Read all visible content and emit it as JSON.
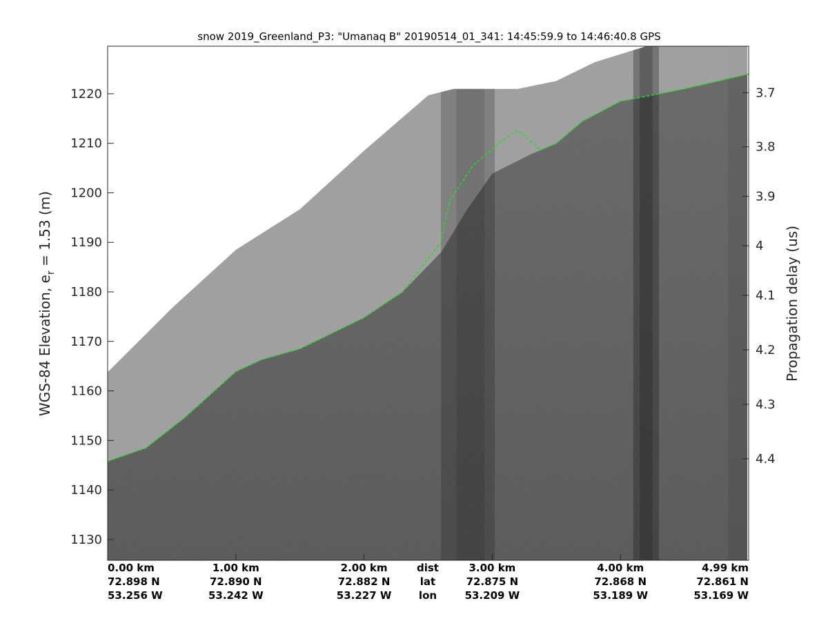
{
  "chart_data": {
    "type": "heatmap",
    "title": "snow 2019_Greenland_P3: \"Umanaq B\"  20190514_01_341: 14:45:59.9 to 14:46:40.8 GPS",
    "ylabel_main": "WGS-84 Elevation, e",
    "ylabel_sub": "r",
    "ylabel_tail": " = 1.53 (m)",
    "y2label": "Propagation delay (us)",
    "ylim": [
      1125.8,
      1229.6
    ],
    "y_ticks": [
      1130,
      1140,
      1150,
      1160,
      1170,
      1180,
      1190,
      1200,
      1210,
      1220
    ],
    "y2_ticks": [
      {
        "label": "3.7",
        "elev": 1220.2
      },
      {
        "label": "3.8",
        "elev": 1209.3
      },
      {
        "label": "3.9",
        "elev": 1199.3
      },
      {
        "label": "4",
        "elev": 1189.3
      },
      {
        "label": "4.1",
        "elev": 1179.3
      },
      {
        "label": "4.2",
        "elev": 1168.3
      },
      {
        "label": "4.3",
        "elev": 1157.3
      },
      {
        "label": "4.4",
        "elev": 1146.3
      }
    ],
    "xlim_km": [
      0,
      5.0
    ],
    "image_end_km": 4.99,
    "x_labels": [
      {
        "km": 0.0,
        "dist": "0.00 km",
        "lat": "72.898 N",
        "lon": "53.256 W",
        "align": "start"
      },
      {
        "km": 1.0,
        "dist": "1.00 km",
        "lat": "72.890 N",
        "lon": "53.242 W",
        "align": "middle"
      },
      {
        "km": 2.0,
        "dist": "2.00 km",
        "lat": "72.882 N",
        "lon": "53.227 W",
        "align": "middle"
      },
      {
        "km": 3.0,
        "dist": "3.00 km",
        "lat": "72.875 N",
        "lon": "53.209 W",
        "align": "middle"
      },
      {
        "km": 4.0,
        "dist": "4.00 km",
        "lat": "72.868 N",
        "lon": "53.189 W",
        "align": "middle"
      },
      {
        "km": 5.0,
        "dist": "4.99 km",
        "lat": "72.861 N",
        "lon": "53.169 W",
        "align": "end"
      }
    ],
    "row_labels": {
      "dist": "dist",
      "lat": "lat",
      "lon": "lon"
    },
    "top_boundary": [
      [
        0.0,
        1163.8
      ],
      [
        0.5,
        1176.7
      ],
      [
        1.0,
        1188.5
      ],
      [
        1.5,
        1196.7
      ],
      [
        2.0,
        1208.5
      ],
      [
        2.5,
        1219.7
      ],
      [
        2.7,
        1221.0
      ],
      [
        3.2,
        1221.0
      ],
      [
        3.5,
        1222.6
      ],
      [
        3.8,
        1226.4
      ],
      [
        4.2,
        1229.6
      ],
      [
        5.0,
        1229.6
      ]
    ],
    "surface_layer": [
      [
        0.0,
        1145.8
      ],
      [
        0.3,
        1148.5
      ],
      [
        0.6,
        1154.6
      ],
      [
        1.0,
        1163.9
      ],
      [
        1.2,
        1166.3
      ],
      [
        1.5,
        1168.5
      ],
      [
        2.0,
        1174.8
      ],
      [
        2.3,
        1180.0
      ],
      [
        2.6,
        1188.0
      ],
      [
        2.8,
        1196.5
      ],
      [
        3.0,
        1203.9
      ],
      [
        3.3,
        1207.8
      ],
      [
        3.5,
        1210.0
      ],
      [
        3.7,
        1214.4
      ],
      [
        4.0,
        1218.5
      ],
      [
        4.5,
        1221.0
      ],
      [
        5.0,
        1224.0
      ],
      [
        5.25,
        1225.7
      ]
    ],
    "layer_tracker": [
      [
        0.0,
        1145.8
      ],
      [
        0.3,
        1148.5
      ],
      [
        0.6,
        1154.6
      ],
      [
        1.0,
        1163.9
      ],
      [
        1.2,
        1166.3
      ],
      [
        1.5,
        1168.5
      ],
      [
        2.0,
        1174.8
      ],
      [
        2.3,
        1180.0
      ],
      [
        2.6,
        1190.0
      ],
      [
        2.62,
        1193.0
      ],
      [
        2.67,
        1198.5
      ],
      [
        2.85,
        1205.5
      ],
      [
        3.1,
        1211.0
      ],
      [
        3.2,
        1212.6
      ],
      [
        3.33,
        1209.8
      ],
      [
        3.37,
        1208.6
      ],
      [
        3.5,
        1210.0
      ],
      [
        3.7,
        1214.4
      ],
      [
        4.0,
        1218.5
      ],
      [
        4.5,
        1221.0
      ],
      [
        5.0,
        1224.0
      ],
      [
        5.25,
        1225.7
      ]
    ],
    "dark_bands": [
      {
        "x0": 2.6,
        "x1": 3.02,
        "alpha": 0.22
      },
      {
        "x0": 2.72,
        "x1": 2.94,
        "alpha": 0.12
      },
      {
        "x0": 4.1,
        "x1": 4.3,
        "alpha": 0.3
      },
      {
        "x0": 4.15,
        "x1": 4.25,
        "alpha": 0.22
      }
    ],
    "colors": {
      "air": "#9e9e9e",
      "firn_top": "#646464",
      "firn_bottom": "#545454",
      "layer_line": "#22dd22",
      "axis": "#262626"
    }
  }
}
